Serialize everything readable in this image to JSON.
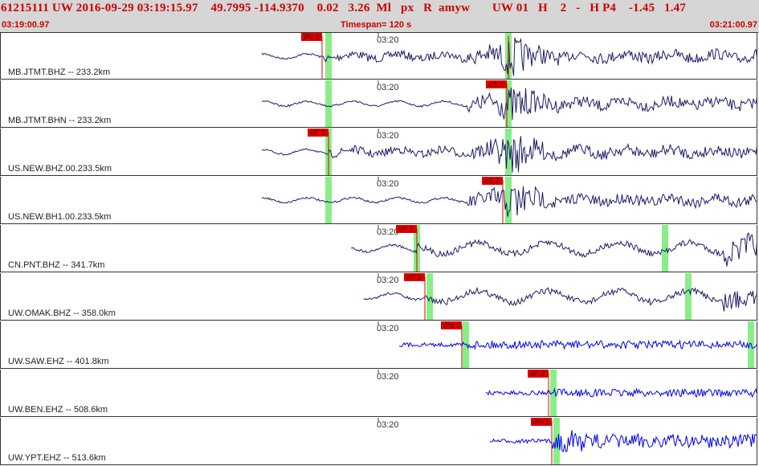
{
  "header": {
    "info_line": "61215111 UW 2016-09-29 03:19:15.97    49.7995 -114.9370    0.02   3.26  Ml   px   R  amyw       UW 01   H    2   -   H P4    -1.45   1.47",
    "start_time": "03:19:00.97",
    "timespan": "Timespan= 120 s",
    "end_time": "03:21:00.97"
  },
  "colors": {
    "header_bg": "#d6d6d6",
    "header_text": "#cc0000",
    "trace_dark": "#1c1c66",
    "trace_blue": "#0000ee",
    "pick_marker": "#dd0000",
    "window_band": "#88ee88"
  },
  "traces": [
    {
      "label": "MB.JTMT.BHZ -- 233.2km",
      "tick": "03:20",
      "color": "trace_dark",
      "amp": 0.18,
      "noise": 0.3,
      "picks": [
        {
          "tag": "iPc 1",
          "t": 0.0
        },
        {
          "tag": "",
          "t": 0.27
        }
      ]
    },
    {
      "label": "MB.JTMT.BHN -- 233.2km",
      "tick": "03:20",
      "color": "trace_dark",
      "amp": 0.2,
      "noise": 0.25,
      "picks": [
        {
          "tag": "eS 2",
          "t": 0.28
        }
      ]
    },
    {
      "label": "US.NEW.BHZ.00.233.5km",
      "tick": "03:20",
      "color": "trace_dark",
      "amp": 0.16,
      "noise": 0.2,
      "picks": [
        {
          "tag": "eP 2",
          "t": 0.0
        }
      ]
    },
    {
      "label": "US.NEW.BH1.00.233.5km",
      "tick": "03:20",
      "color": "trace_dark",
      "amp": 0.14,
      "noise": 0.2,
      "picks": [
        {
          "tag": "eS 2",
          "t": 0.26
        }
      ]
    },
    {
      "label": "CN.PNT.BHZ -- 341.7km",
      "tick": "03:20",
      "color": "trace_dark",
      "amp": 0.28,
      "noise": 0.4,
      "picks": [
        {
          "tag": "eP 2",
          "t": 0.0
        }
      ]
    },
    {
      "label": "UW.OMAK.BHZ -- 358.0km",
      "tick": "03:20",
      "color": "trace_dark",
      "amp": 0.36,
      "noise": 0.5,
      "picks": [
        {
          "tag": "eP 2",
          "t": 0.0
        }
      ]
    },
    {
      "label": "UW.SAW.EHZ -- 401.8km",
      "tick": "03:20",
      "color": "trace_blue",
      "amp": 0.12,
      "noise": 0.5,
      "picks": [
        {
          "tag": "iPd 1",
          "t": 0.0
        }
      ]
    },
    {
      "label": "UW.BEN.EHZ -- 508.6km",
      "tick": "03:20",
      "color": "trace_blue",
      "amp": 0.12,
      "noise": 0.5,
      "picks": [
        {
          "tag": "eP 2",
          "t": 0.0
        }
      ]
    },
    {
      "label": "UW.YPT.EHZ -- 513.6km",
      "tick": "03:20",
      "color": "trace_blue",
      "amp": 0.14,
      "noise": 0.6,
      "picks": [
        {
          "tag": "iPc 1",
          "t": 0.0
        }
      ]
    }
  ]
}
